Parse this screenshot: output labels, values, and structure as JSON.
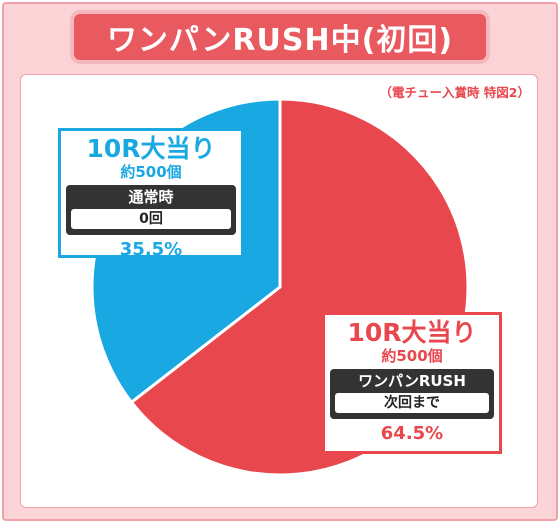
{
  "title": "ワンパンRUSH中(初回)",
  "note": "（電チュー入賞時 特図2）",
  "colors": {
    "red": "#e8484d",
    "blue": "#1aa8e2",
    "pink_bg": "#fbd4d8",
    "title_bg": "#e85a60"
  },
  "chart_data": {
    "type": "pie",
    "title": "ワンパンRUSH中(初回)",
    "slices": [
      {
        "label": "10R大当り",
        "sub": "約500個",
        "box_label": "ワンパンRUSH",
        "box_value": "次回まで",
        "value": 64.5,
        "percent_text": "64.5%",
        "color": "#e8484d"
      },
      {
        "label": "10R大当り",
        "sub": "約500個",
        "box_label": "通常時",
        "box_value": "0回",
        "value": 35.5,
        "percent_text": "35.5%",
        "color": "#1aa8e2"
      }
    ]
  }
}
